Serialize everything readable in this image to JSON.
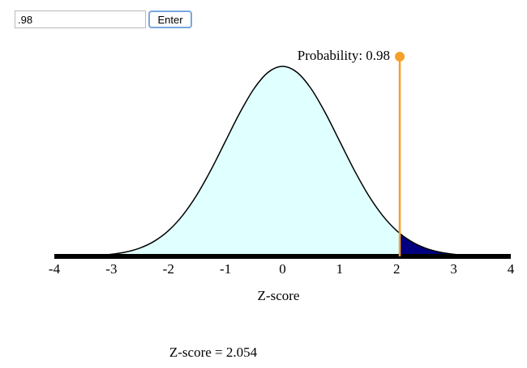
{
  "input": {
    "value": ".98",
    "button": "Enter"
  },
  "chart_data": {
    "type": "area",
    "x": [
      -4,
      -3.75,
      -3.5,
      -3.25,
      -3,
      -2.75,
      -2.5,
      -2.25,
      -2,
      -1.75,
      -1.5,
      -1.25,
      -1,
      -0.75,
      -0.5,
      -0.25,
      0,
      0.25,
      0.5,
      0.75,
      1,
      1.25,
      1.5,
      1.75,
      2,
      2.25,
      2.5,
      2.75,
      3,
      3.25,
      3.5,
      3.75,
      4
    ],
    "values": [
      0.00013,
      0.00035,
      0.00087,
      0.00203,
      0.00443,
      0.00909,
      0.01753,
      0.03174,
      0.05399,
      0.08628,
      0.12952,
      0.18265,
      0.24197,
      0.30114,
      0.35207,
      0.38667,
      0.39894,
      0.38667,
      0.35207,
      0.30114,
      0.24197,
      0.18265,
      0.12952,
      0.08628,
      0.05399,
      0.03174,
      0.01753,
      0.00909,
      0.00443,
      0.00203,
      0.00087,
      0.00035,
      0.00013
    ],
    "xlim": [
      -4,
      4
    ],
    "xticks": [
      -4,
      -3,
      -2,
      -1,
      0,
      1,
      2,
      3,
      4
    ],
    "ylim": [
      0,
      0.4
    ],
    "xlabel": "Z-score",
    "colors": {
      "below": "#e0ffff",
      "above": "#000080",
      "line": "#000000",
      "marker": "#f5a02a"
    },
    "probability": {
      "value": 0.98,
      "label": "Probability: 0.98"
    },
    "threshold": {
      "value": 2.054,
      "label": "Z-score = 2.054"
    }
  }
}
